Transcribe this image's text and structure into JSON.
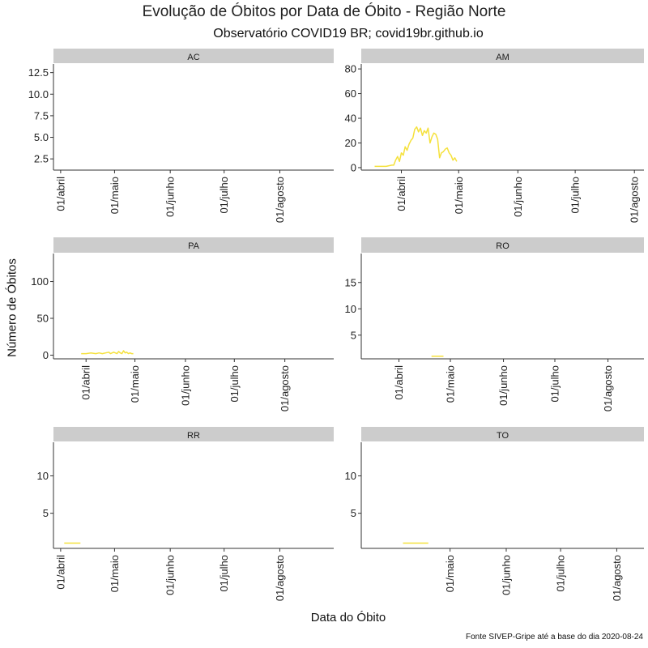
{
  "title": "Evolução de Óbitos por Data de Óbito - Região Norte",
  "subtitle": "Observatório COVID19 BR; covid19br.github.io",
  "xlabel": "Data do Óbito",
  "ylabel": "Número de Óbitos",
  "caption": "Fonte SIVEP-Gripe até a base do dia 2020-08-24",
  "colors": {
    "line": "#f5e13c",
    "strip": "#cccccc",
    "axis": "#333333"
  },
  "chart_data": [
    {
      "type": "line",
      "panel": "AC",
      "ylim": [
        1.2,
        13.5
      ],
      "yticks": [
        2.5,
        5.0,
        7.5,
        10.0,
        12.5
      ],
      "ytick_labels": [
        "2.5",
        "5.0",
        "7.5",
        "10.0",
        "12.5"
      ],
      "xlim": [
        "2020-03-28",
        "2020-08-31"
      ],
      "xticks": [
        "2020-04-01",
        "2020-05-01",
        "2020-06-01",
        "2020-07-01",
        "2020-08-01"
      ],
      "xtick_labels": [
        "01/abril",
        "01/maio",
        "01/junho",
        "01/julho",
        "01/agosto"
      ],
      "x": [],
      "y": []
    },
    {
      "type": "line",
      "panel": "AM",
      "ylim": [
        -2,
        84
      ],
      "yticks": [
        0,
        20,
        40,
        60,
        80
      ],
      "ytick_labels": [
        "0",
        "20",
        "40",
        "60",
        "80"
      ],
      "xlim": [
        "2020-03-11",
        "2020-08-06"
      ],
      "xticks": [
        "2020-04-01",
        "2020-05-01",
        "2020-06-01",
        "2020-07-01",
        "2020-08-01"
      ],
      "xtick_labels": [
        "01/abril",
        "01/maio",
        "01/junho",
        "01/julho",
        "01/agosto"
      ],
      "x": [
        "2020-03-18",
        "2020-03-21",
        "2020-03-24",
        "2020-03-27",
        "2020-03-28",
        "2020-03-29",
        "2020-03-30",
        "2020-03-31",
        "2020-04-01",
        "2020-04-02",
        "2020-04-03",
        "2020-04-04",
        "2020-04-05",
        "2020-04-06",
        "2020-04-07",
        "2020-04-08",
        "2020-04-09",
        "2020-04-10",
        "2020-04-11",
        "2020-04-12",
        "2020-04-13",
        "2020-04-14",
        "2020-04-15",
        "2020-04-16",
        "2020-04-17",
        "2020-04-18",
        "2020-04-19",
        "2020-04-20",
        "2020-04-21",
        "2020-04-22",
        "2020-04-23",
        "2020-04-24",
        "2020-04-25",
        "2020-04-26",
        "2020-04-27",
        "2020-04-28",
        "2020-04-29",
        "2020-04-30"
      ],
      "y": [
        1,
        1,
        1,
        2,
        2,
        6,
        9,
        5,
        12,
        10,
        17,
        14,
        19,
        22,
        24,
        31,
        33,
        29,
        32,
        26,
        30,
        28,
        32,
        20,
        25,
        28,
        27,
        23,
        8,
        12,
        13,
        15,
        16,
        12,
        10,
        6,
        8,
        5
      ]
    },
    {
      "type": "line",
      "panel": "PA",
      "ylim": [
        -5,
        138
      ],
      "yticks": [
        0,
        50,
        100
      ],
      "ytick_labels": [
        "0",
        "50",
        "100"
      ],
      "xlim": [
        "2020-03-12",
        "2020-08-31"
      ],
      "xticks": [
        "2020-04-01",
        "2020-05-01",
        "2020-06-01",
        "2020-07-01",
        "2020-08-01"
      ],
      "xtick_labels": [
        "01/abril",
        "01/maio",
        "01/junho",
        "01/julho",
        "01/agosto"
      ],
      "x": [
        "2020-03-29",
        "2020-04-01",
        "2020-04-04",
        "2020-04-07",
        "2020-04-09",
        "2020-04-11",
        "2020-04-13",
        "2020-04-15",
        "2020-04-16",
        "2020-04-17",
        "2020-04-18",
        "2020-04-19",
        "2020-04-20",
        "2020-04-21",
        "2020-04-22",
        "2020-04-23",
        "2020-04-24",
        "2020-04-25",
        "2020-04-26",
        "2020-04-27",
        "2020-04-28",
        "2020-04-29",
        "2020-04-30"
      ],
      "y": [
        2,
        2,
        3,
        2,
        3,
        2,
        3,
        4,
        2,
        3,
        4,
        3,
        2,
        5,
        3,
        2,
        6,
        3,
        4,
        2,
        3,
        2,
        2
      ]
    },
    {
      "type": "line",
      "panel": "RO",
      "ylim": [
        0.5,
        20.5
      ],
      "yticks": [
        5,
        10,
        15
      ],
      "ytick_labels": [
        "5",
        "10",
        "15"
      ],
      "xlim": [
        "2020-03-10",
        "2020-08-22"
      ],
      "xticks": [
        "2020-04-01",
        "2020-05-01",
        "2020-06-01",
        "2020-07-01",
        "2020-08-01"
      ],
      "xtick_labels": [
        "01/abril",
        "01/maio",
        "01/junho",
        "01/julho",
        "01/agosto"
      ],
      "x": [
        "2020-04-20",
        "2020-04-27"
      ],
      "y": [
        1,
        1
      ]
    },
    {
      "type": "line",
      "panel": "RR",
      "ylim": [
        0.3,
        14.5
      ],
      "yticks": [
        5,
        10
      ],
      "ytick_labels": [
        "5",
        "10"
      ],
      "xlim": [
        "2020-03-28",
        "2020-08-31"
      ],
      "xticks": [
        "2020-04-01",
        "2020-05-01",
        "2020-06-01",
        "2020-07-01",
        "2020-08-01"
      ],
      "xtick_labels": [
        "01/abril",
        "01/maio",
        "01/junho",
        "01/julho",
        "01/agosto"
      ],
      "x": [
        "2020-04-03",
        "2020-04-12"
      ],
      "y": [
        1,
        1
      ]
    },
    {
      "type": "line",
      "panel": "TO",
      "ylim": [
        0.3,
        14.5
      ],
      "yticks": [
        5,
        10
      ],
      "ytick_labels": [
        "5",
        "10"
      ],
      "xlim": [
        "2020-03-13",
        "2020-08-16"
      ],
      "xticks": [
        "2020-05-01",
        "2020-06-01",
        "2020-07-01",
        "2020-08-01"
      ],
      "xtick_labels": [
        "01/maio",
        "01/junho",
        "01/julho",
        "01/agosto"
      ],
      "x": [
        "2020-04-05",
        "2020-04-19"
      ],
      "y": [
        1,
        1
      ]
    }
  ]
}
